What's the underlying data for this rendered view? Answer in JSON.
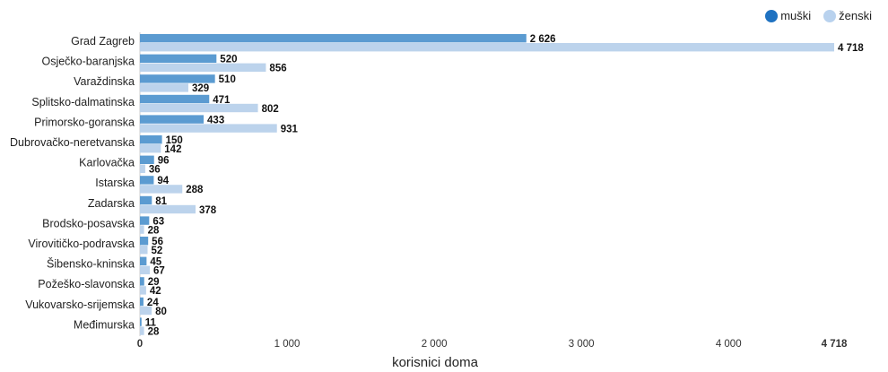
{
  "chart_data": {
    "type": "bar",
    "orientation": "horizontal",
    "categories": [
      "Grad Zagreb",
      "Osječko-baranjska",
      "Varaždinska",
      "Splitsko-dalmatinska",
      "Primorsko-goranska",
      "Dubrovačko-neretvanska",
      "Karlovačka",
      "Istarska",
      "Zadarska",
      "Brodsko-posavska",
      "Virovitičko-podravska",
      "Šibensko-kninska",
      "Požeško-slavonska",
      "Vukovarsko-srijemska",
      "Međimurska"
    ],
    "series": [
      {
        "name": "muški",
        "color": "#5b9bd1",
        "values": [
          2626,
          520,
          510,
          471,
          433,
          150,
          96,
          94,
          81,
          63,
          56,
          45,
          29,
          24,
          11
        ],
        "labels": [
          "2 626",
          "520",
          "510",
          "471",
          "433",
          "150",
          "96",
          "94",
          "81",
          "63",
          "56",
          "45",
          "29",
          "24",
          "11"
        ]
      },
      {
        "name": "ženski",
        "color": "#bcd3ec",
        "values": [
          4718,
          856,
          329,
          802,
          931,
          142,
          36,
          288,
          378,
          28,
          52,
          67,
          42,
          80,
          28
        ],
        "labels": [
          "4 718",
          "856",
          "329",
          "802",
          "931",
          "142",
          "36",
          "288",
          "378",
          "28",
          "52",
          "67",
          "42",
          "80",
          "28"
        ]
      }
    ],
    "xlim": [
      0,
      4718
    ],
    "xticks": [
      0,
      1000,
      2000,
      3000,
      4000,
      4718
    ],
    "xtick_labels": [
      "0",
      "1 000",
      "2 000",
      "3 000",
      "4 000",
      "4 718"
    ],
    "xlabel": "korisnici doma",
    "legend_position": "top-right"
  }
}
